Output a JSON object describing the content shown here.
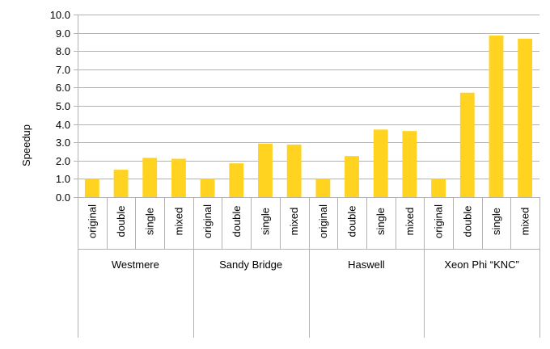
{
  "chart_data": {
    "type": "bar",
    "title": "",
    "ylabel": "Speedup",
    "xlabel": "",
    "ylim": [
      0,
      10
    ],
    "ytick_step": 1,
    "y_ticks": [
      "0.0",
      "1.0",
      "2.0",
      "3.0",
      "4.0",
      "5.0",
      "6.0",
      "7.0",
      "8.0",
      "9.0",
      "10.0"
    ],
    "grid": true,
    "legend": "none",
    "bar_color": "#FFD320",
    "grid_color": "#B3B3B3",
    "groups": [
      {
        "name": "Westmere",
        "categories": [
          "original",
          "double",
          "single",
          "mixed"
        ],
        "values": [
          1.0,
          1.5,
          2.15,
          2.1
        ]
      },
      {
        "name": "Sandy Bridge",
        "categories": [
          "original",
          "double",
          "single",
          "mixed"
        ],
        "values": [
          1.0,
          1.85,
          2.93,
          2.88
        ]
      },
      {
        "name": "Haswell",
        "categories": [
          "original",
          "double",
          "single",
          "mixed"
        ],
        "values": [
          1.0,
          2.25,
          3.7,
          3.62
        ]
      },
      {
        "name": "Xeon Phi “KNC”",
        "categories": [
          "original",
          "double",
          "single",
          "mixed"
        ],
        "values": [
          1.0,
          5.72,
          8.85,
          8.68
        ]
      }
    ]
  }
}
